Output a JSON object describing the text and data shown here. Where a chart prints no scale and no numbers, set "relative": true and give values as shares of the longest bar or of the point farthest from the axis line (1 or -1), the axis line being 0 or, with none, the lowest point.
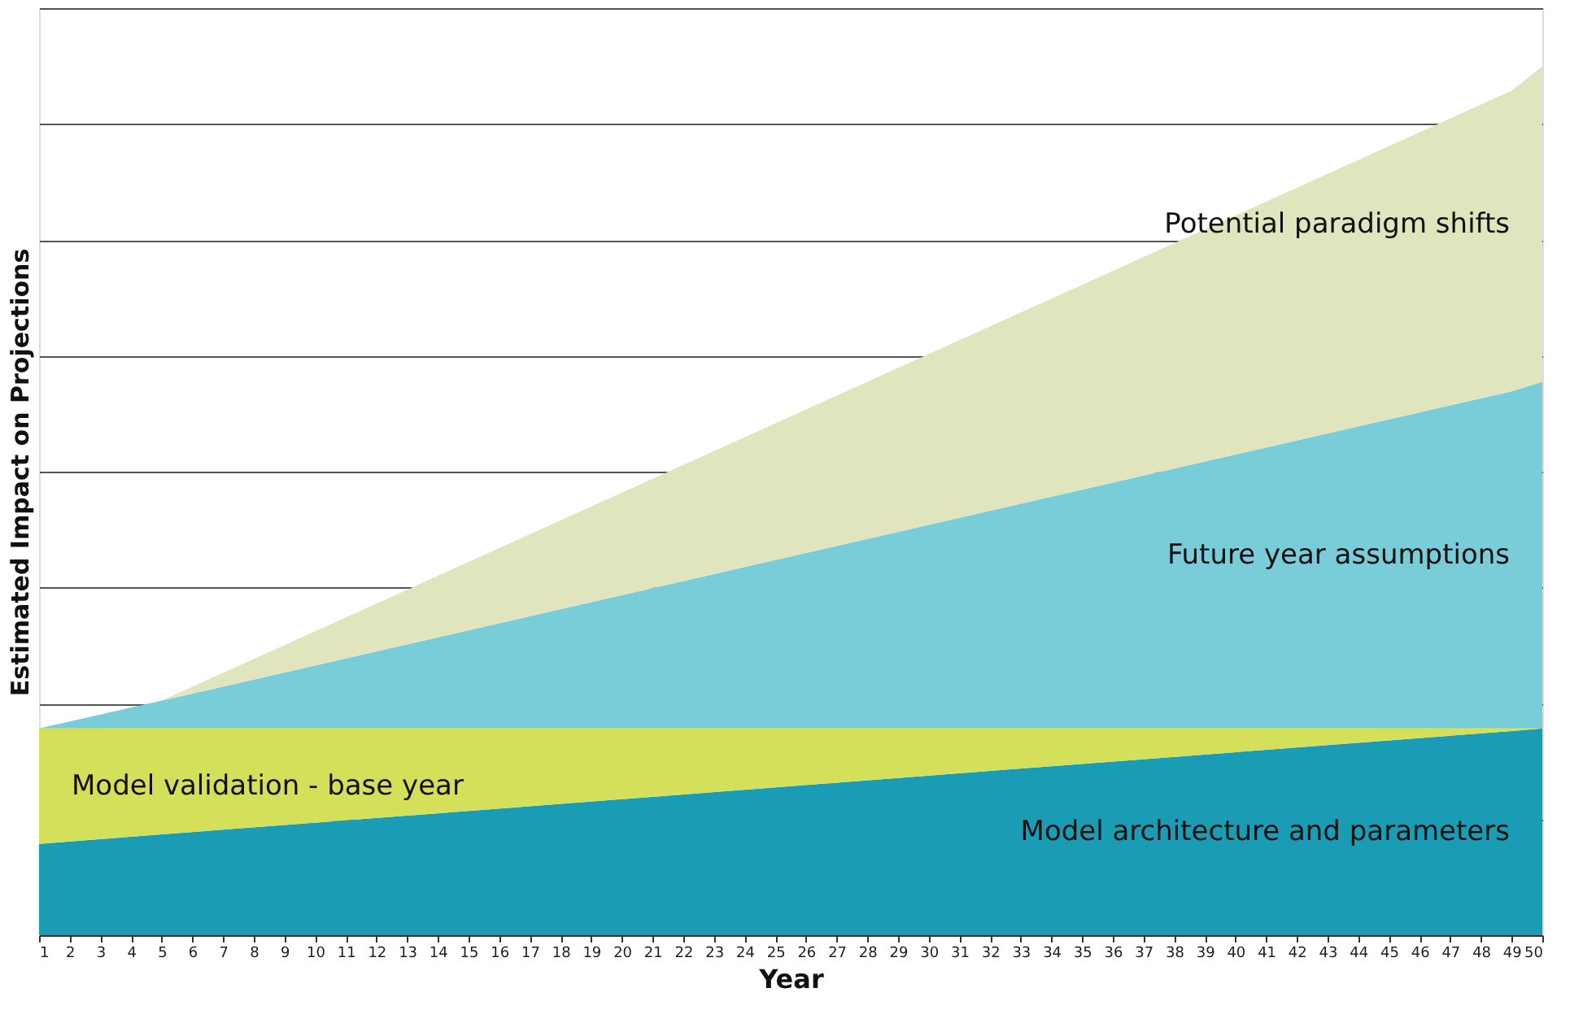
{
  "chart_data": {
    "type": "area",
    "stacked": true,
    "relative": true,
    "xlabel": "Year",
    "ylabel": "Estimated Impact on Projections",
    "x": [
      1,
      5,
      49,
      50
    ],
    "xlim": [
      1,
      50
    ],
    "xticks": [
      1,
      2,
      3,
      4,
      5,
      6,
      7,
      8,
      9,
      10,
      11,
      12,
      13,
      14,
      15,
      16,
      17,
      18,
      19,
      20,
      21,
      22,
      23,
      24,
      25,
      26,
      27,
      28,
      29,
      30,
      31,
      32,
      33,
      34,
      35,
      36,
      37,
      38,
      39,
      40,
      41,
      42,
      43,
      44,
      45,
      46,
      47,
      48,
      49,
      50
    ],
    "series": [
      {
        "name": "Model architecture and parameters",
        "color": "#1b9cb5",
        "values": [
          0.105,
          0.116,
          0.235,
          0.238
        ]
      },
      {
        "name": "Model validation - base year",
        "color": "#d4e05a",
        "values": [
          0.133,
          0.122,
          0.003,
          0
        ]
      },
      {
        "name": "Future year assumptions",
        "color": "#79cdd9",
        "values": [
          0,
          0.032,
          0.388,
          0.399
        ]
      },
      {
        "name": "Potential paradigm shifts",
        "color": "#e1e5be",
        "values": [
          0,
          0,
          0.346,
          0.363
        ]
      }
    ],
    "grid": "y",
    "legend": false
  }
}
